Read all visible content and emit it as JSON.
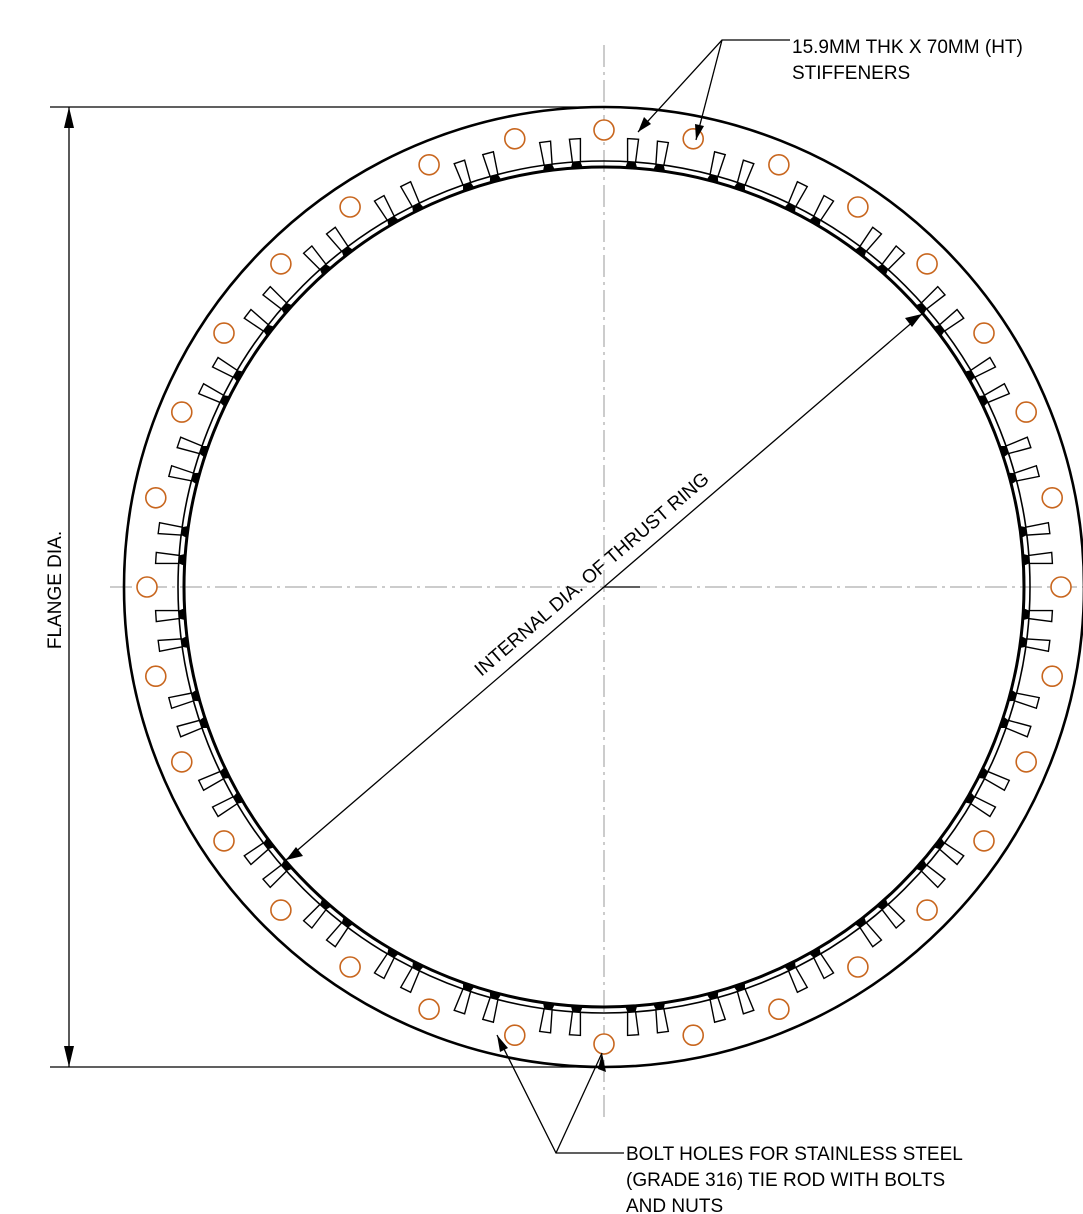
{
  "labels": {
    "stiffeners_line1": "15.9MM THK X 70MM (HT)",
    "stiffeners_line2": "STIFFENERS",
    "internal_dia": "INTERNAL DIA. OF THRUST RING",
    "flange_dia": "FLANGE DIA.",
    "bolt_line1": "BOLT HOLES FOR STAINLESS STEEL",
    "bolt_line2": "(GRADE 316) TIE ROD WITH BOLTS",
    "bolt_line3": "AND NUTS"
  },
  "counts": {
    "bolt_holes": 32,
    "stiffeners": 64
  },
  "colors": {
    "line": "#000000",
    "bolt_hole": "#c8661e",
    "centerline": "#9a9a9a"
  }
}
